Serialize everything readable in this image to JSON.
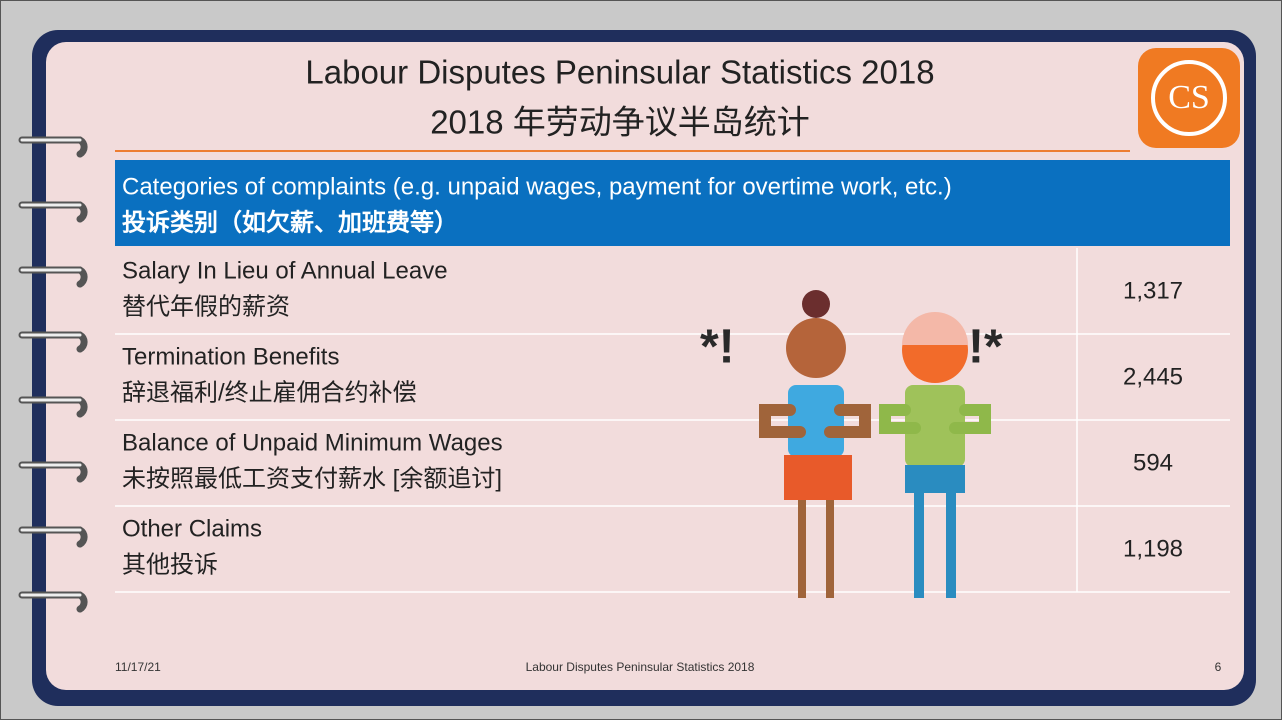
{
  "header": {
    "title": "Labour Disputes Peninsular Statistics 2018",
    "title_zh": "2018 年劳动争议半岛统计",
    "logo": "CS"
  },
  "table": {
    "header": [
      "Categories of complaints (e.g. unpaid wages, payment for overtime work, etc.)",
      "投诉类别（如欠薪、加班费等）"
    ],
    "rows": [
      [
        "Salary In Lieu of Annual Leave",
        "替代年假的薪资",
        "1,317"
      ],
      [
        "Termination Benefits",
        "辞退福利/终止雇佣合约补偿",
        "2,445"
      ],
      [
        "Balance of Unpaid Minimum Wages",
        "未按照最低工资支付薪水 [余额追讨]",
        "594"
      ],
      [
        "Other Claims",
        "其他投诉",
        "1,198"
      ]
    ]
  },
  "footer": {
    "date": "11/17/21",
    "title": "Labour Disputes Peninsular Statistics 2018",
    "page": "6"
  }
}
